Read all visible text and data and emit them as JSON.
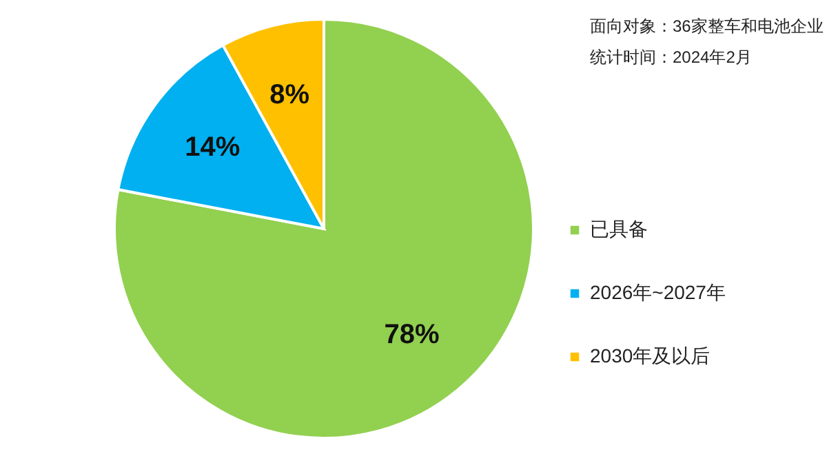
{
  "chart_data": {
    "type": "pie",
    "categories": [
      "已具备",
      "2026年~2027年",
      "2030年及以后"
    ],
    "values": [
      78,
      14,
      8
    ],
    "colors": [
      "#92d050",
      "#00b0f0",
      "#ffc000"
    ],
    "value_labels": [
      "78%",
      "14%",
      "8%"
    ],
    "legend": "right",
    "annotations": [
      "面向对象：36家整车和电池企业",
      "统计时间：2024年2月"
    ]
  }
}
